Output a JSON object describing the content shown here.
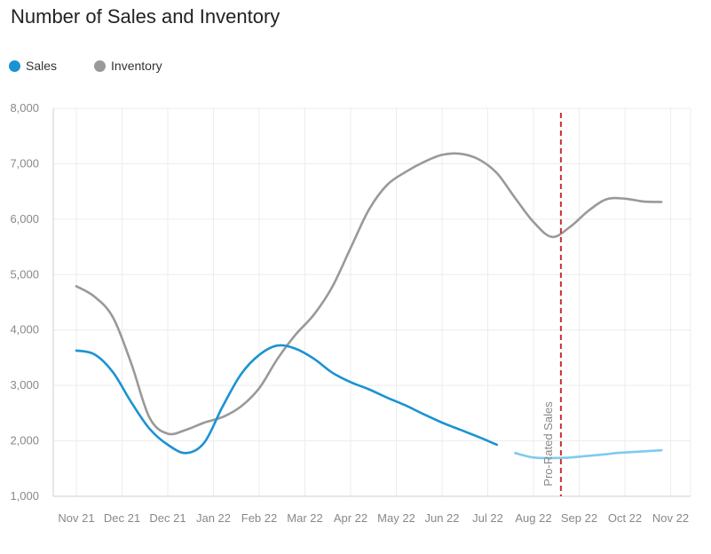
{
  "chart_data": {
    "type": "line",
    "title": "Number of Sales and Inventory",
    "x": [
      "Nov 21",
      "Dec 21",
      "Dec 21",
      "Jan 22",
      "Feb 22",
      "Mar 22",
      "Apr 22",
      "May 22",
      "Jun 22",
      "Jul 22",
      "Aug 22",
      "Sep 22",
      "Oct 22",
      "Nov 22"
    ],
    "ylim": [
      1000,
      8000
    ],
    "yticks": [
      "1,000",
      "2,000",
      "3,000",
      "4,000",
      "5,000",
      "6,000",
      "7,000",
      "8,000"
    ],
    "grid": true,
    "legend_position": "top-left",
    "series": [
      {
        "name": "Sales",
        "color": "#1a93d3",
        "projected_color": "#7fcbee",
        "projected_from": 23.5,
        "points": [
          [
            0,
            3630
          ],
          [
            1,
            3560
          ],
          [
            2,
            3240
          ],
          [
            3,
            2700
          ],
          [
            4,
            2220
          ],
          [
            5,
            1930
          ],
          [
            6,
            1780
          ],
          [
            7,
            1970
          ],
          [
            8,
            2620
          ],
          [
            9,
            3200
          ],
          [
            10,
            3550
          ],
          [
            11,
            3720
          ],
          [
            12,
            3660
          ],
          [
            13,
            3480
          ],
          [
            14,
            3230
          ],
          [
            15,
            3060
          ],
          [
            16,
            2930
          ],
          [
            17,
            2780
          ],
          [
            18,
            2640
          ],
          [
            19,
            2480
          ],
          [
            20,
            2330
          ],
          [
            21,
            2200
          ],
          [
            22,
            2070
          ],
          [
            23,
            1930
          ],
          [
            24,
            1780
          ],
          [
            25,
            1700
          ],
          [
            26,
            1690
          ],
          [
            27,
            1700
          ],
          [
            28,
            1730
          ],
          [
            29,
            1760
          ],
          [
            29.5,
            1780
          ],
          [
            30,
            1790
          ],
          [
            31,
            1810
          ],
          [
            32,
            1830
          ]
        ]
      },
      {
        "name": "Inventory",
        "color": "#999999",
        "points": [
          [
            0,
            4790
          ],
          [
            1,
            4600
          ],
          [
            2,
            4230
          ],
          [
            3,
            3400
          ],
          [
            4,
            2420
          ],
          [
            5,
            2130
          ],
          [
            6,
            2200
          ],
          [
            7,
            2330
          ],
          [
            8,
            2430
          ],
          [
            9,
            2620
          ],
          [
            10,
            2950
          ],
          [
            11,
            3480
          ],
          [
            12,
            3920
          ],
          [
            13,
            4280
          ],
          [
            14,
            4780
          ],
          [
            15,
            5480
          ],
          [
            16,
            6170
          ],
          [
            17,
            6620
          ],
          [
            18,
            6850
          ],
          [
            19,
            7030
          ],
          [
            20,
            7160
          ],
          [
            21,
            7180
          ],
          [
            22,
            7080
          ],
          [
            23,
            6830
          ],
          [
            24,
            6380
          ],
          [
            25,
            5950
          ],
          [
            26,
            5680
          ],
          [
            27,
            5860
          ],
          [
            28,
            6150
          ],
          [
            29,
            6360
          ],
          [
            30,
            6370
          ],
          [
            31,
            6320
          ],
          [
            32,
            6310
          ]
        ]
      }
    ],
    "annotations": [
      {
        "type": "vertical-dashed-line",
        "x": 26.5,
        "color": "#cc3333",
        "label": "Pro-Rated Sales"
      }
    ]
  }
}
